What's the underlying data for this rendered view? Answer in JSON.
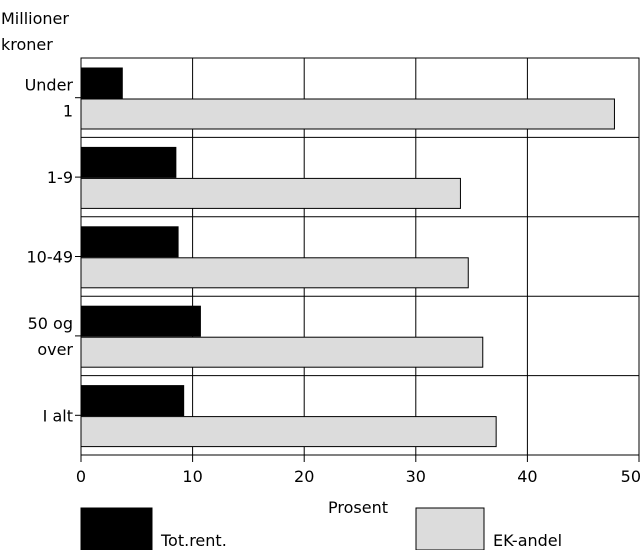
{
  "chart_data": {
    "type": "bar",
    "orientation": "horizontal",
    "y_axis_title_lines": [
      "Millioner",
      "kroner"
    ],
    "categories": [
      [
        "Under",
        "1"
      ],
      [
        "1-9"
      ],
      [
        "10-49"
      ],
      [
        "50 og",
        "over"
      ],
      [
        "I alt"
      ]
    ],
    "series": [
      {
        "name": "Tot.rent.",
        "color": "#000000",
        "values": [
          3.7,
          8.5,
          8.7,
          10.7,
          9.2
        ]
      },
      {
        "name": "EK-andel",
        "color": "#dcdcdc",
        "values": [
          47.8,
          34.0,
          34.7,
          36.0,
          37.2
        ]
      }
    ],
    "xlabel": "Prosent",
    "xlim": [
      0,
      50
    ],
    "xticks": [
      0,
      10,
      20,
      30,
      40,
      50
    ],
    "grid": true,
    "legend_position": "bottom"
  }
}
